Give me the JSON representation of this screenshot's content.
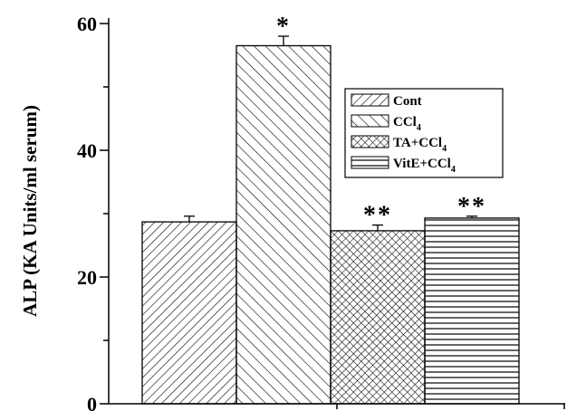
{
  "chart_data": {
    "type": "bar",
    "title": "",
    "xlabel": "",
    "ylabel": "ALP (KA Units/ml serum)",
    "ylim": [
      0,
      60
    ],
    "yticks": [
      0,
      20,
      40,
      60
    ],
    "grid": false,
    "legend_position": "top-right",
    "series": [
      {
        "name": "Cont",
        "name_base": "Cont",
        "name_sub": "",
        "value": 28.7,
        "error": 0.9,
        "significance": "",
        "pattern": "diag-up"
      },
      {
        "name": "CCl4",
        "name_base": "CCl",
        "name_sub": "4",
        "value": 56.5,
        "error": 1.5,
        "significance": "*",
        "pattern": "diag-down"
      },
      {
        "name": "TA+CCl4",
        "name_base": "TA+CCl",
        "name_sub": "4",
        "value": 27.3,
        "error": 0.9,
        "significance": "**",
        "pattern": "crosshatch"
      },
      {
        "name": "VitE+CCl4",
        "name_base": "VitE+CCl",
        "name_sub": "4",
        "value": 29.3,
        "error": 0.3,
        "significance": "**",
        "pattern": "horizontal"
      }
    ],
    "colors": {
      "ink": "#000000",
      "background": "#ffffff"
    }
  }
}
